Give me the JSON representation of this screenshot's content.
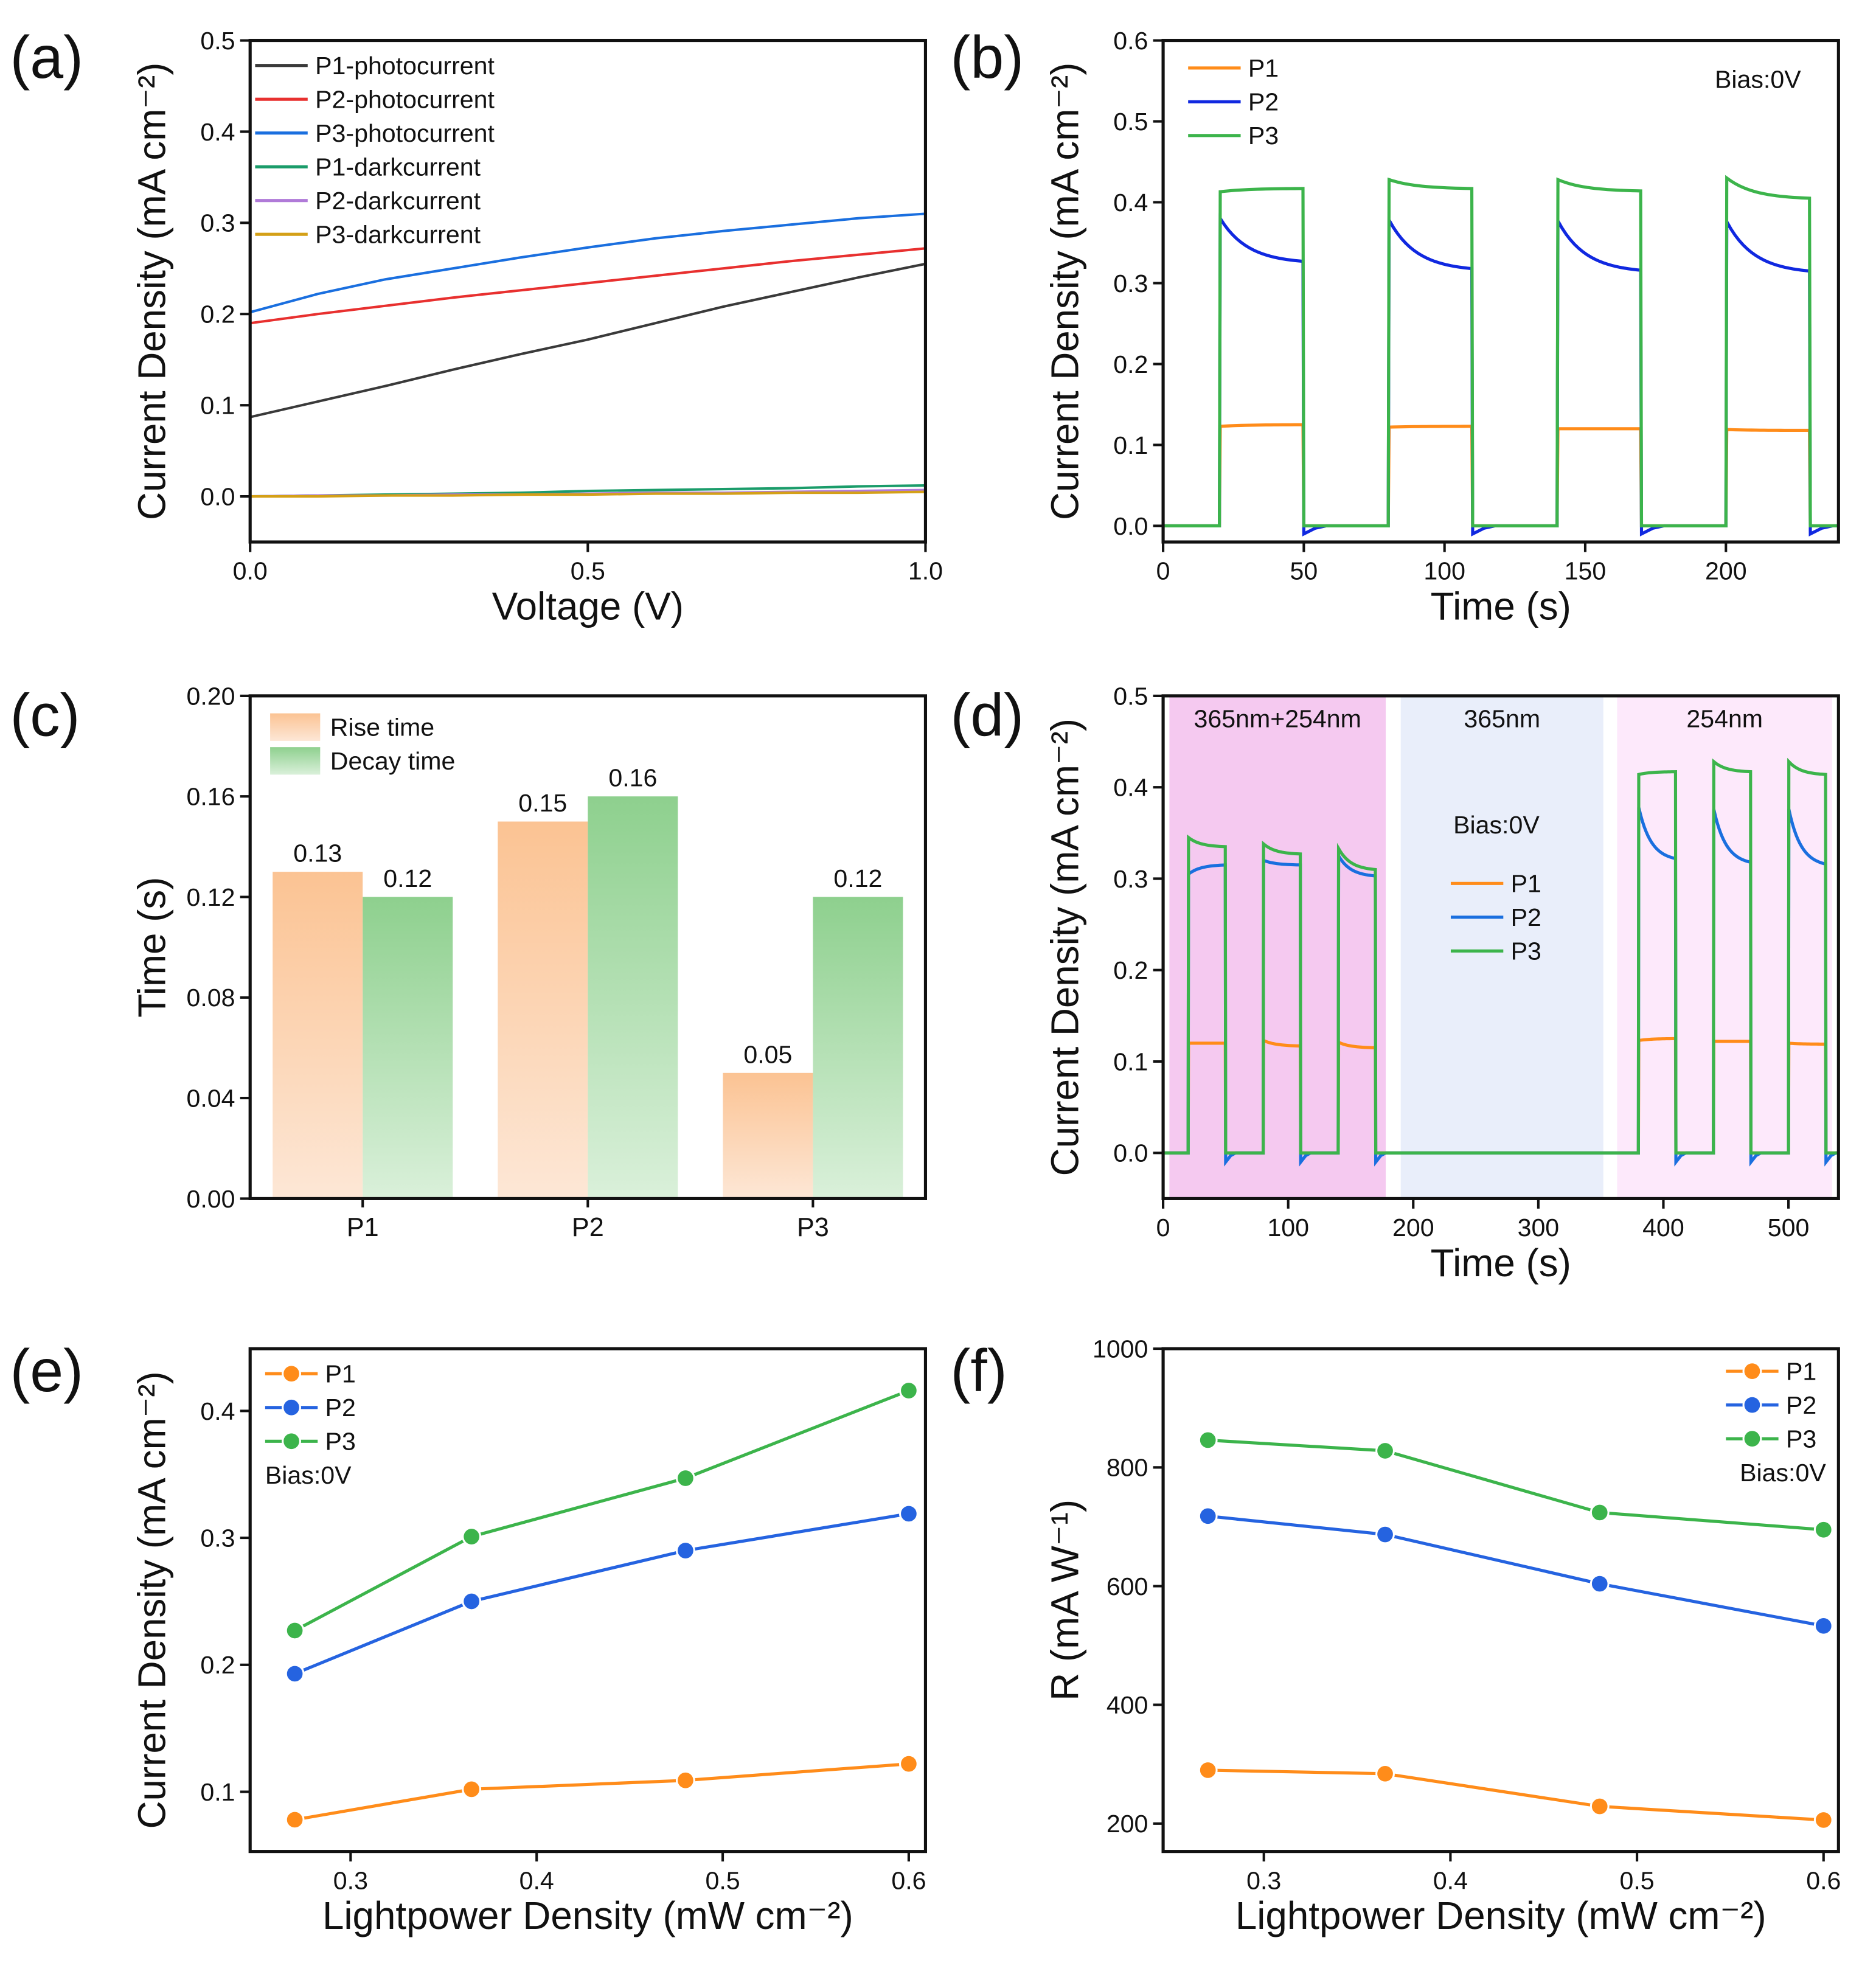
{
  "chart_data": [
    {
      "panel": "(a)",
      "type": "line",
      "xlabel": "Voltage (V)",
      "ylabel": "Current Density (mA cm⁻²)",
      "xlim": [
        0,
        1
      ],
      "ylim": [
        -0.05,
        0.5
      ],
      "xticks": [
        0,
        0.5,
        1.0
      ],
      "xtick_labels": [
        "0.0",
        "0.5",
        "1.0"
      ],
      "yticks": [
        0,
        0.1,
        0.2,
        0.3,
        0.4,
        0.5
      ],
      "ytick_labels": [
        "0.0",
        "0.1",
        "0.2",
        "0.3",
        "0.4",
        "0.5"
      ],
      "legend": "top-left",
      "grid": false,
      "x": [
        0,
        0.1,
        0.2,
        0.3,
        0.4,
        0.5,
        0.6,
        0.7,
        0.8,
        0.9,
        1.0
      ],
      "series": [
        {
          "name": "P1-photocurrent",
          "color": "#3a3a3a",
          "values": [
            0.087,
            0.104,
            0.121,
            0.139,
            0.156,
            0.172,
            0.19,
            0.208,
            0.224,
            0.24,
            0.255
          ]
        },
        {
          "name": "P2-photocurrent",
          "color": "#e8302f",
          "values": [
            0.19,
            0.2,
            0.209,
            0.218,
            0.226,
            0.234,
            0.242,
            0.25,
            0.258,
            0.265,
            0.272
          ]
        },
        {
          "name": "P3-photocurrent",
          "color": "#1a6fdf",
          "values": [
            0.202,
            0.222,
            0.238,
            0.25,
            0.262,
            0.273,
            0.283,
            0.291,
            0.298,
            0.305,
            0.31
          ]
        },
        {
          "name": "P1-darkcurrent",
          "color": "#1a9c6a",
          "values": [
            0,
            0.001,
            0.002,
            0.003,
            0.004,
            0.006,
            0.007,
            0.008,
            0.009,
            0.011,
            0.012
          ]
        },
        {
          "name": "P2-darkcurrent",
          "color": "#b07ad8",
          "values": [
            0,
            0.001,
            0.001,
            0.002,
            0.002,
            0.003,
            0.004,
            0.004,
            0.005,
            0.006,
            0.007
          ]
        },
        {
          "name": "P3-darkcurrent",
          "color": "#d4a017",
          "values": [
            0,
            0,
            0.001,
            0.001,
            0.002,
            0.002,
            0.003,
            0.003,
            0.004,
            0.004,
            0.005
          ]
        }
      ]
    },
    {
      "panel": "(b)",
      "type": "line",
      "xlabel": "Time (s)",
      "ylabel": "Current Density (mA cm⁻²)",
      "annotation": "Bias:0V",
      "xlim": [
        0,
        240
      ],
      "ylim": [
        -0.02,
        0.6
      ],
      "xticks": [
        0,
        50,
        100,
        150,
        200
      ],
      "xtick_labels": [
        "0",
        "50",
        "100",
        "150",
        "200"
      ],
      "yticks": [
        0,
        0.1,
        0.2,
        0.3,
        0.4,
        0.5,
        0.6
      ],
      "ytick_labels": [
        "0.0",
        "0.1",
        "0.2",
        "0.3",
        "0.4",
        "0.5",
        "0.6"
      ],
      "legend": "top-left",
      "light_on_intervals": [
        [
          20,
          50
        ],
        [
          80,
          110
        ],
        [
          140,
          170
        ],
        [
          200,
          230
        ]
      ],
      "series": [
        {
          "name": "P1",
          "color": "#ff8c1a",
          "on_start": [
            0.123,
            0.122,
            0.12,
            0.119
          ],
          "on_end": [
            0.125,
            0.123,
            0.12,
            0.118
          ],
          "undershoot": 0
        },
        {
          "name": "P2",
          "color": "#1028e0",
          "on_start": [
            0.38,
            0.378,
            0.377,
            0.376
          ],
          "on_end": [
            0.327,
            0.318,
            0.316,
            0.315
          ],
          "undershoot": -0.01
        },
        {
          "name": "P3",
          "color": "#3cb44b",
          "on_start": [
            0.413,
            0.428,
            0.428,
            0.43
          ],
          "on_end": [
            0.417,
            0.417,
            0.414,
            0.405
          ],
          "undershoot": 0
        }
      ]
    },
    {
      "panel": "(c)",
      "type": "bar",
      "ylabel": "Time (s)",
      "categories": [
        "P1",
        "P2",
        "P3"
      ],
      "ylim": [
        0,
        0.2
      ],
      "yticks": [
        0,
        0.04,
        0.08,
        0.12,
        0.16,
        0.2
      ],
      "ytick_labels": [
        "0.00",
        "0.04",
        "0.08",
        "0.12",
        "0.16",
        "0.20"
      ],
      "legend": "top-left",
      "series": [
        {
          "name": "Rise time",
          "color": "#fbc393",
          "values": [
            0.13,
            0.15,
            0.05
          ],
          "labels": [
            "0.13",
            "0.15",
            "0.05"
          ]
        },
        {
          "name": "Decay time",
          "color": "#8ed08e",
          "values": [
            0.12,
            0.16,
            0.12
          ],
          "labels": [
            "0.12",
            "0.16",
            "0.12"
          ]
        }
      ]
    },
    {
      "panel": "(d)",
      "type": "line",
      "xlabel": "Time (s)",
      "ylabel": "Current Density (mA cm⁻²)",
      "annotation": "Bias:0V",
      "xlim": [
        0,
        540
      ],
      "ylim": [
        -0.05,
        0.5
      ],
      "xticks": [
        0,
        100,
        200,
        300,
        400,
        500
      ],
      "xtick_labels": [
        "0",
        "100",
        "200",
        "300",
        "400",
        "500"
      ],
      "yticks": [
        0,
        0.1,
        0.2,
        0.3,
        0.4,
        0.5
      ],
      "ytick_labels": [
        "0.0",
        "0.1",
        "0.2",
        "0.3",
        "0.4",
        "0.5"
      ],
      "legend": "center",
      "regions": [
        {
          "label": "365nm+254nm",
          "range": [
            5,
            178
          ],
          "color": "#f5c9f0"
        },
        {
          "label": "365nm",
          "range": [
            190,
            352
          ],
          "color": "#e9eefa"
        },
        {
          "label": "254nm",
          "range": [
            363,
            535
          ],
          "color": "#fde9fb"
        }
      ],
      "light_on_intervals": [
        [
          20,
          50
        ],
        [
          80,
          110
        ],
        [
          140,
          170
        ],
        [
          380,
          410
        ],
        [
          440,
          470
        ],
        [
          500,
          530
        ]
      ],
      "series": [
        {
          "name": "P1",
          "color": "#ff8c1a",
          "on_start": [
            0.12,
            0.123,
            0.121,
            0.123,
            0.122,
            0.12
          ],
          "on_end": [
            0.12,
            0.117,
            0.115,
            0.125,
            0.122,
            0.119
          ],
          "undershoot": 0
        },
        {
          "name": "P2",
          "color": "#1a6fdf",
          "on_start": [
            0.305,
            0.32,
            0.325,
            0.378,
            0.376,
            0.376
          ],
          "on_end": [
            0.315,
            0.315,
            0.303,
            0.322,
            0.318,
            0.316
          ],
          "undershoot": -0.01
        },
        {
          "name": "P3",
          "color": "#3cb44b",
          "on_start": [
            0.345,
            0.338,
            0.333,
            0.414,
            0.428,
            0.428
          ],
          "on_end": [
            0.335,
            0.327,
            0.31,
            0.417,
            0.417,
            0.414
          ],
          "undershoot": 0
        }
      ]
    },
    {
      "panel": "(e)",
      "type": "line",
      "xlabel": "Lightpower Density (mW cm⁻²)",
      "ylabel": "Current Density (mA cm⁻²)",
      "annotation": "Bias:0V",
      "xlim": [
        0.246,
        0.609
      ],
      "ylim": [
        0.053,
        0.449
      ],
      "xticks": [
        0.3,
        0.4,
        0.5,
        0.6
      ],
      "xtick_labels": [
        "0.3",
        "0.4",
        "0.5",
        "0.6"
      ],
      "yticks": [
        0.1,
        0.2,
        0.3,
        0.4
      ],
      "ytick_labels": [
        "0.1",
        "0.2",
        "0.3",
        "0.4"
      ],
      "legend": "top-left",
      "x": [
        0.27,
        0.365,
        0.48,
        0.6
      ],
      "series": [
        {
          "name": "P1",
          "color": "#ff8c1a",
          "values": [
            0.078,
            0.102,
            0.109,
            0.122
          ]
        },
        {
          "name": "P2",
          "color": "#2563e0",
          "values": [
            0.193,
            0.25,
            0.29,
            0.319
          ]
        },
        {
          "name": "P3",
          "color": "#3cb44b",
          "values": [
            0.227,
            0.301,
            0.347,
            0.416
          ]
        }
      ]
    },
    {
      "panel": "(f)",
      "type": "line",
      "xlabel": "Lightpower Density (mW cm⁻²)",
      "ylabel": "R (mA W⁻¹)",
      "annotation": "Bias:0V",
      "xlim": [
        0.246,
        0.608
      ],
      "ylim": [
        153,
        1000
      ],
      "xticks": [
        0.3,
        0.4,
        0.5,
        0.6
      ],
      "xtick_labels": [
        "0.3",
        "0.4",
        "0.5",
        "0.6"
      ],
      "yticks": [
        200,
        400,
        600,
        800,
        1000
      ],
      "ytick_labels": [
        "200",
        "400",
        "600",
        "800",
        "1000"
      ],
      "legend": "top-right",
      "x": [
        0.27,
        0.365,
        0.48,
        0.6
      ],
      "series": [
        {
          "name": "P1",
          "color": "#ff8c1a",
          "values": [
            290,
            284,
            229,
            206
          ]
        },
        {
          "name": "P2",
          "color": "#2563e0",
          "values": [
            718,
            687,
            604,
            533
          ]
        },
        {
          "name": "P3",
          "color": "#3cb44b",
          "values": [
            846,
            828,
            724,
            695
          ]
        }
      ]
    }
  ]
}
